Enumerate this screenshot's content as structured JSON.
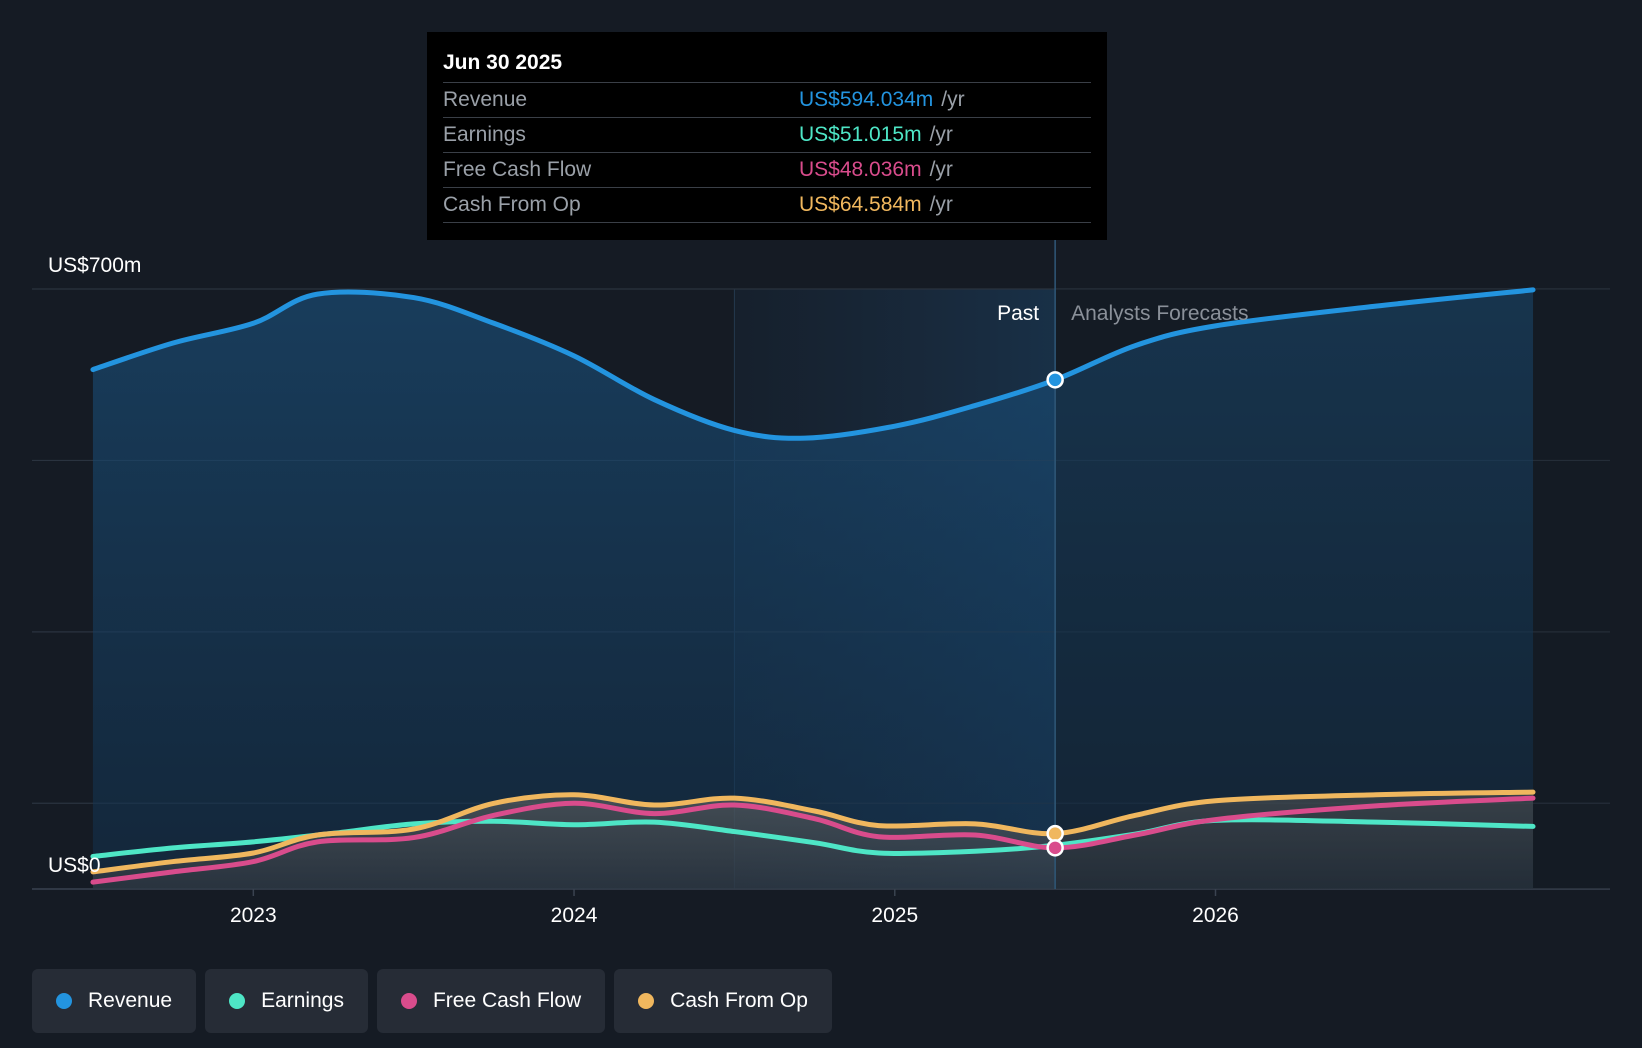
{
  "chart_data": {
    "type": "line",
    "y_axis_labels": {
      "top": "US$700m",
      "bottom": "US$0"
    },
    "ylim": [
      0,
      700
    ],
    "x_ticks": [
      {
        "year": 2023,
        "label": "2023"
      },
      {
        "year": 2024,
        "label": "2024"
      },
      {
        "year": 2025,
        "label": "2025"
      },
      {
        "year": 2026,
        "label": "2026"
      }
    ],
    "region_labels": {
      "past": "Past",
      "forecast": "Analysts Forecasts"
    },
    "divider_x": 2025.5,
    "highlight_start_x": 2024.5,
    "series": [
      {
        "name": "Revenue",
        "color": "#2394df",
        "area": true,
        "points": [
          [
            2022.5,
            606
          ],
          [
            2022.75,
            637
          ],
          [
            2023.0,
            660
          ],
          [
            2023.2,
            694
          ],
          [
            2023.5,
            690
          ],
          [
            2023.75,
            660
          ],
          [
            2024.0,
            622
          ],
          [
            2024.25,
            571
          ],
          [
            2024.5,
            535
          ],
          [
            2024.72,
            526
          ],
          [
            2025.0,
            540
          ],
          [
            2025.25,
            564
          ],
          [
            2025.5,
            594
          ],
          [
            2025.75,
            634
          ],
          [
            2026.0,
            657
          ],
          [
            2026.5,
            680
          ],
          [
            2026.99,
            699
          ]
        ]
      },
      {
        "name": "Earnings",
        "color": "#4ee6c6",
        "points": [
          [
            2022.5,
            38
          ],
          [
            2022.75,
            48
          ],
          [
            2023.0,
            55
          ],
          [
            2023.25,
            65
          ],
          [
            2023.5,
            76
          ],
          [
            2023.75,
            79
          ],
          [
            2024.0,
            75
          ],
          [
            2024.25,
            78
          ],
          [
            2024.5,
            67
          ],
          [
            2024.75,
            54
          ],
          [
            2024.95,
            42
          ],
          [
            2025.25,
            44
          ],
          [
            2025.5,
            51
          ],
          [
            2025.75,
            64
          ],
          [
            2026.0,
            80
          ],
          [
            2026.5,
            78
          ],
          [
            2026.99,
            73
          ]
        ]
      },
      {
        "name": "Free Cash Flow",
        "color": "#d94c8c",
        "points": [
          [
            2022.5,
            8
          ],
          [
            2022.75,
            20
          ],
          [
            2023.0,
            32
          ],
          [
            2023.2,
            55
          ],
          [
            2023.5,
            60
          ],
          [
            2023.75,
            86
          ],
          [
            2024.0,
            100
          ],
          [
            2024.25,
            88
          ],
          [
            2024.5,
            98
          ],
          [
            2024.75,
            82
          ],
          [
            2024.95,
            61
          ],
          [
            2025.25,
            63
          ],
          [
            2025.5,
            48
          ],
          [
            2025.75,
            63
          ],
          [
            2026.0,
            81
          ],
          [
            2026.5,
            97
          ],
          [
            2026.99,
            106
          ]
        ]
      },
      {
        "name": "Cash From Op",
        "color": "#f0b75e",
        "points": [
          [
            2022.5,
            20
          ],
          [
            2022.75,
            32
          ],
          [
            2023.0,
            42
          ],
          [
            2023.2,
            63
          ],
          [
            2023.5,
            70
          ],
          [
            2023.75,
            100
          ],
          [
            2024.0,
            110
          ],
          [
            2024.25,
            98
          ],
          [
            2024.5,
            106
          ],
          [
            2024.75,
            91
          ],
          [
            2024.95,
            74
          ],
          [
            2025.25,
            76
          ],
          [
            2025.5,
            64.6
          ],
          [
            2025.75,
            86
          ],
          [
            2026.0,
            103
          ],
          [
            2026.5,
            110
          ],
          [
            2026.99,
            113
          ]
        ]
      }
    ],
    "highlight_points": [
      {
        "series": "Revenue",
        "x": 2025.5,
        "y": 594.034
      },
      {
        "series": "Cash From Op",
        "x": 2025.5,
        "y": 64.584
      },
      {
        "series": "Free Cash Flow",
        "x": 2025.5,
        "y": 48.036
      }
    ]
  },
  "tooltip": {
    "date": "Jun 30 2025",
    "rows": [
      {
        "label": "Revenue",
        "value": "US$594.034m",
        "unit": "/yr",
        "color": "#2394df"
      },
      {
        "label": "Earnings",
        "value": "US$51.015m",
        "unit": "/yr",
        "color": "#4ee6c6"
      },
      {
        "label": "Free Cash Flow",
        "value": "US$48.036m",
        "unit": "/yr",
        "color": "#d94c8c"
      },
      {
        "label": "Cash From Op",
        "value": "US$64.584m",
        "unit": "/yr",
        "color": "#f0b75e"
      }
    ]
  },
  "legend": [
    {
      "label": "Revenue",
      "color": "#2394df"
    },
    {
      "label": "Earnings",
      "color": "#4ee6c6"
    },
    {
      "label": "Free Cash Flow",
      "color": "#d94c8c"
    },
    {
      "label": "Cash From Op",
      "color": "#f0b75e"
    }
  ]
}
